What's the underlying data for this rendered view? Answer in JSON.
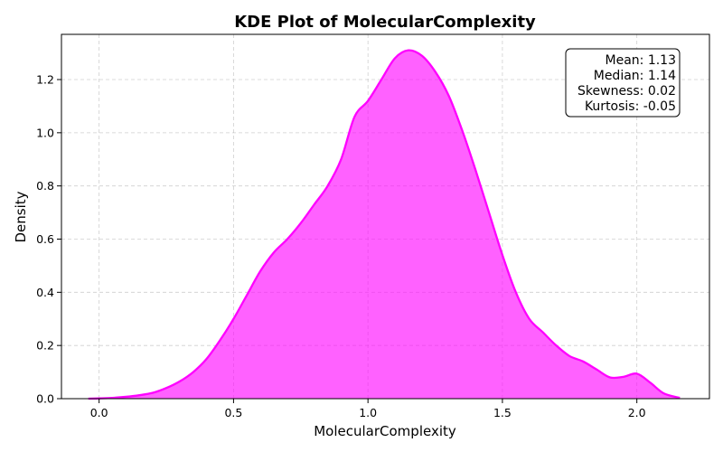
{
  "chart_data": {
    "type": "area",
    "title": "KDE Plot of MolecularComplexity",
    "xlabel": "MolecularComplexity",
    "ylabel": "Density",
    "xlim": [
      -0.14,
      2.27
    ],
    "ylim": [
      0,
      1.37
    ],
    "xticks": [
      0.0,
      0.5,
      1.0,
      1.5,
      2.0
    ],
    "xtick_labels": [
      "0.0",
      "0.5",
      "1.0",
      "1.5",
      "2.0"
    ],
    "yticks": [
      0.0,
      0.2,
      0.4,
      0.6,
      0.8,
      1.0,
      1.2
    ],
    "ytick_labels": [
      "0.0",
      "0.2",
      "0.4",
      "0.6",
      "0.8",
      "1.0",
      "1.2"
    ],
    "grid": true,
    "series": [
      {
        "color": "#ff00ff",
        "x": [
          -0.04,
          0.0,
          0.05,
          0.1,
          0.15,
          0.2,
          0.25,
          0.3,
          0.35,
          0.4,
          0.45,
          0.5,
          0.55,
          0.6,
          0.65,
          0.7,
          0.75,
          0.8,
          0.85,
          0.9,
          0.95,
          1.0,
          1.05,
          1.1,
          1.15,
          1.2,
          1.25,
          1.3,
          1.35,
          1.4,
          1.45,
          1.5,
          1.55,
          1.6,
          1.65,
          1.7,
          1.75,
          1.8,
          1.85,
          1.9,
          1.95,
          2.0,
          2.05,
          2.1,
          2.16
        ],
        "y": [
          0.0,
          0.001,
          0.003,
          0.007,
          0.013,
          0.022,
          0.04,
          0.065,
          0.1,
          0.15,
          0.22,
          0.3,
          0.39,
          0.48,
          0.55,
          0.6,
          0.66,
          0.73,
          0.8,
          0.9,
          1.06,
          1.12,
          1.2,
          1.28,
          1.31,
          1.29,
          1.23,
          1.14,
          1.01,
          0.86,
          0.7,
          0.54,
          0.4,
          0.3,
          0.25,
          0.2,
          0.16,
          0.14,
          0.11,
          0.08,
          0.082,
          0.094,
          0.06,
          0.02,
          0.003
        ]
      }
    ],
    "stats": {
      "lines": [
        "Mean: 1.13",
        "Median: 1.14",
        "Skewness: 0.02",
        "Kurtosis: -0.05"
      ],
      "placement": "top-right"
    }
  }
}
